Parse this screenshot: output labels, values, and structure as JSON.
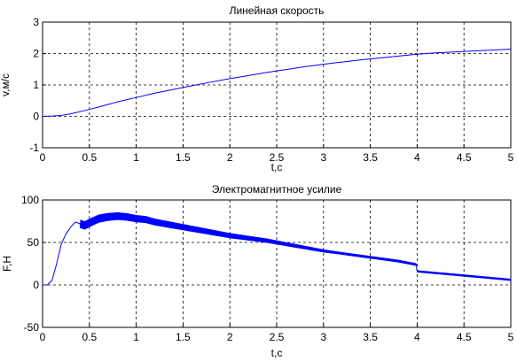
{
  "chart_data": [
    {
      "type": "line",
      "title": "Линейная скорость",
      "xlabel": "t,c",
      "ylabel": "v,м/с",
      "xlim": [
        0,
        5
      ],
      "ylim": [
        -1,
        3
      ],
      "xticks": [
        0,
        0.5,
        1,
        1.5,
        2,
        2.5,
        3,
        3.5,
        4,
        4.5,
        5
      ],
      "xtick_labels": [
        "0",
        "0.5",
        "1",
        "1.5",
        "2",
        "2.5",
        "3",
        "3.5",
        "4",
        "4.5",
        "5"
      ],
      "yticks": [
        -1,
        0,
        1,
        2,
        3
      ],
      "ytick_labels": [
        "-1",
        "0",
        "1",
        "2",
        "3"
      ],
      "grid": true,
      "color": "#0000ff",
      "series": [
        {
          "x": [
            0,
            0.1,
            0.2,
            0.3,
            0.4,
            0.5,
            0.6,
            0.8,
            1.0,
            1.2,
            1.4,
            1.6,
            1.8,
            2.0,
            2.2,
            2.4,
            2.6,
            2.8,
            3.0,
            3.2,
            3.4,
            3.6,
            3.8,
            4.0,
            4.2,
            4.4,
            4.6,
            4.8,
            5.0
          ],
          "y": [
            0,
            0.01,
            0.03,
            0.08,
            0.15,
            0.22,
            0.3,
            0.46,
            0.6,
            0.74,
            0.86,
            0.98,
            1.09,
            1.2,
            1.3,
            1.4,
            1.49,
            1.58,
            1.66,
            1.73,
            1.8,
            1.86,
            1.92,
            1.98,
            2.02,
            2.05,
            2.08,
            2.11,
            2.14
          ]
        }
      ]
    },
    {
      "type": "line",
      "title": "Электромагнитное усилие",
      "xlabel": "t,c",
      "ylabel": "F,H",
      "xlim": [
        0,
        5
      ],
      "ylim": [
        -50,
        100
      ],
      "xticks": [
        0,
        0.5,
        1,
        1.5,
        2,
        2.5,
        3,
        3.5,
        4,
        4.5,
        5
      ],
      "xtick_labels": [
        "0",
        "0.5",
        "1",
        "1.5",
        "2",
        "2.5",
        "3",
        "3.5",
        "4",
        "4.5",
        "5"
      ],
      "yticks": [
        -50,
        0,
        50,
        100
      ],
      "ytick_labels": [
        "-50",
        "0",
        "50",
        "100"
      ],
      "grid": true,
      "color": "#0000ff",
      "series": [
        {
          "x": [
            0,
            0.05,
            0.1,
            0.15,
            0.2,
            0.25,
            0.3,
            0.35,
            0.4,
            0.45,
            0.5,
            0.6,
            0.7,
            0.8,
            0.9,
            1.0,
            1.1,
            1.2,
            1.3,
            1.4,
            1.5,
            1.6,
            1.7,
            1.8,
            1.9,
            2.0,
            2.2,
            2.4,
            2.6,
            2.8,
            3.0,
            3.2,
            3.4,
            3.6,
            3.8,
            3.99,
            4.0,
            4.2,
            4.4,
            4.6,
            4.8,
            5.0
          ],
          "y": [
            0,
            0,
            5,
            25,
            48,
            60,
            68,
            74,
            72,
            70,
            73,
            78,
            80,
            81,
            80,
            78,
            77,
            74,
            72,
            70,
            68,
            66,
            64,
            62,
            60,
            58,
            55,
            52,
            48,
            44,
            40,
            37,
            34,
            31,
            28,
            24,
            16,
            14,
            12,
            10,
            8,
            6
          ]
        }
      ]
    }
  ]
}
